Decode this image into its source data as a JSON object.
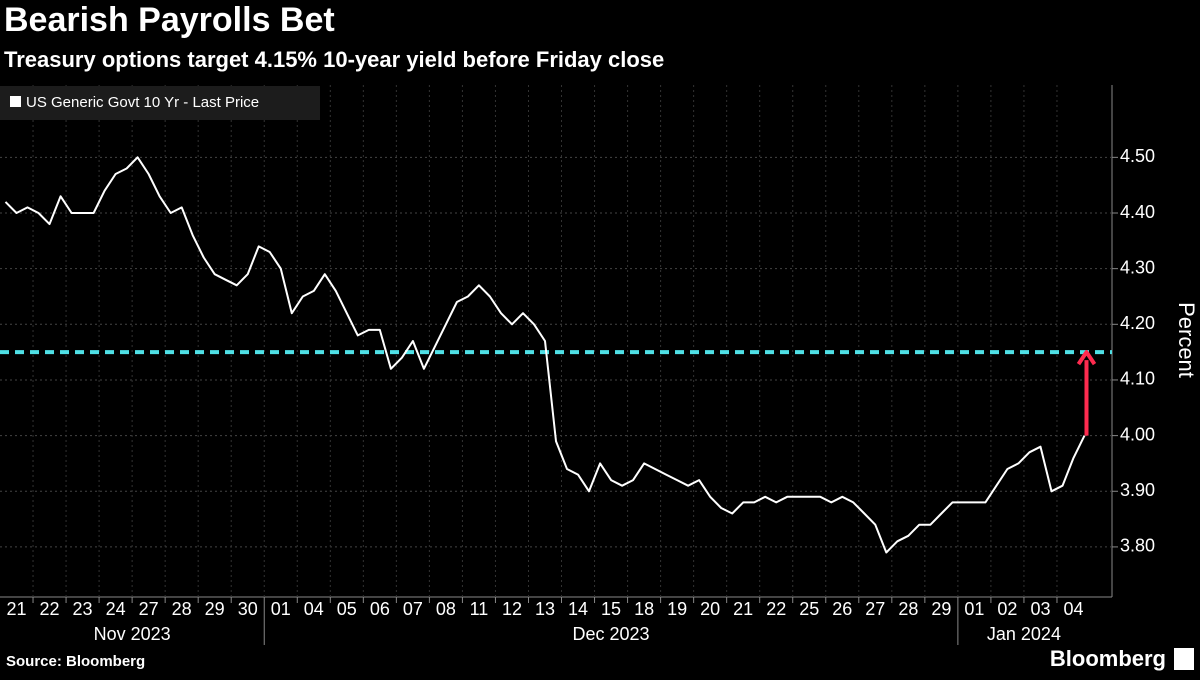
{
  "chart_data": {
    "type": "line",
    "title": "Bearish Payrolls Bet",
    "subtitle": "Treasury options target 4.15% 10-year yield before Friday close",
    "y_axis_label": "Percent",
    "source": "Source: Bloomberg",
    "brand": "Bloomberg",
    "categories": [
      "21",
      null,
      null,
      "22",
      null,
      null,
      "23",
      null,
      null,
      "24",
      null,
      null,
      "27",
      null,
      null,
      "28",
      null,
      null,
      "29",
      null,
      null,
      "30",
      null,
      null,
      "01",
      null,
      null,
      "04",
      null,
      null,
      "05",
      null,
      null,
      "06",
      null,
      null,
      "07",
      null,
      null,
      "08",
      null,
      null,
      "11",
      null,
      null,
      "12",
      null,
      null,
      "13",
      null,
      null,
      "14",
      null,
      null,
      "15",
      null,
      null,
      "18",
      null,
      null,
      "19",
      null,
      null,
      "20",
      null,
      null,
      "21",
      null,
      null,
      "22",
      null,
      null,
      "25",
      null,
      null,
      "26",
      null,
      null,
      "27",
      null,
      null,
      "28",
      null,
      null,
      "29",
      null,
      null,
      "01",
      null,
      null,
      "02",
      null,
      null,
      "03",
      null,
      null,
      "04",
      null,
      null
    ],
    "month_labels": [
      "Nov 2023",
      "Dec 2023",
      "Jan 2024"
    ],
    "series": [
      {
        "name": "US Generic Govt 10 Yr - Last Price",
        "color": "#ffffff",
        "values": [
          4.42,
          4.4,
          4.41,
          4.4,
          4.38,
          4.43,
          4.4,
          4.4,
          4.4,
          4.44,
          4.47,
          4.48,
          4.5,
          4.47,
          4.43,
          4.4,
          4.41,
          4.36,
          4.32,
          4.29,
          4.28,
          4.27,
          4.29,
          4.34,
          4.33,
          4.3,
          4.22,
          4.25,
          4.26,
          4.29,
          4.26,
          4.22,
          4.18,
          4.19,
          4.19,
          4.12,
          4.14,
          4.17,
          4.12,
          4.16,
          4.2,
          4.24,
          4.25,
          4.27,
          4.25,
          4.22,
          4.2,
          4.22,
          4.2,
          4.17,
          3.99,
          3.94,
          3.93,
          3.9,
          3.95,
          3.92,
          3.91,
          3.92,
          3.95,
          3.94,
          3.93,
          3.92,
          3.91,
          3.92,
          3.89,
          3.87,
          3.86,
          3.88,
          3.88,
          3.89,
          3.88,
          3.89,
          3.89,
          3.89,
          3.89,
          3.88,
          3.89,
          3.88,
          3.86,
          3.84,
          3.79,
          3.81,
          3.82,
          3.84,
          3.84,
          3.86,
          3.88,
          3.88,
          3.88,
          3.88,
          3.91,
          3.94,
          3.95,
          3.97,
          3.98,
          3.9,
          3.91,
          3.96,
          4.0
        ]
      }
    ],
    "ylim": [
      3.71,
      4.63
    ],
    "yticks": [
      {
        "value": 3.8,
        "label": "3.80"
      },
      {
        "value": 3.9,
        "label": "3.90"
      },
      {
        "value": 4.0,
        "label": "4.00"
      },
      {
        "value": 4.1,
        "label": "4.10"
      },
      {
        "value": 4.2,
        "label": "4.20"
      },
      {
        "value": 4.3,
        "label": "4.30"
      },
      {
        "value": 4.4,
        "label": "4.40"
      },
      {
        "value": 4.5,
        "label": "4.50"
      }
    ],
    "grid": true,
    "reference_line": {
      "value": 4.15,
      "color": "#4fe0e6"
    },
    "arrow": {
      "from": 4.0,
      "to": 4.15,
      "color": "#ff2b4f"
    },
    "legend": "top-left"
  }
}
